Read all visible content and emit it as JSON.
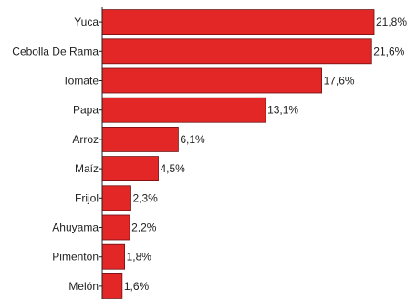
{
  "chart_data": {
    "type": "bar",
    "orientation": "horizontal",
    "title": "",
    "xlabel": "",
    "ylabel": "",
    "xlim": [
      0,
      21.8
    ],
    "grid": false,
    "legend": "none",
    "categories": [
      "Yuca",
      "Cebolla De Rama",
      "Tomate",
      "Papa",
      "Arroz",
      "Maíz",
      "Frijol",
      "Ahuyama",
      "Pimentón",
      "Melón"
    ],
    "values": [
      21.8,
      21.6,
      17.6,
      13.1,
      6.1,
      4.5,
      2.3,
      2.2,
      1.8,
      1.6
    ],
    "value_labels": [
      "21,8%",
      "21,6%",
      "17,6%",
      "13,1%",
      "6,1%",
      "4,5%",
      "2,3%",
      "2,2%",
      "1,8%",
      "1,6%"
    ],
    "colors": {
      "bar_fill": "#e32727",
      "bar_stroke": "#6e0f0f",
      "axis": "#222222",
      "text": "#222222"
    }
  }
}
